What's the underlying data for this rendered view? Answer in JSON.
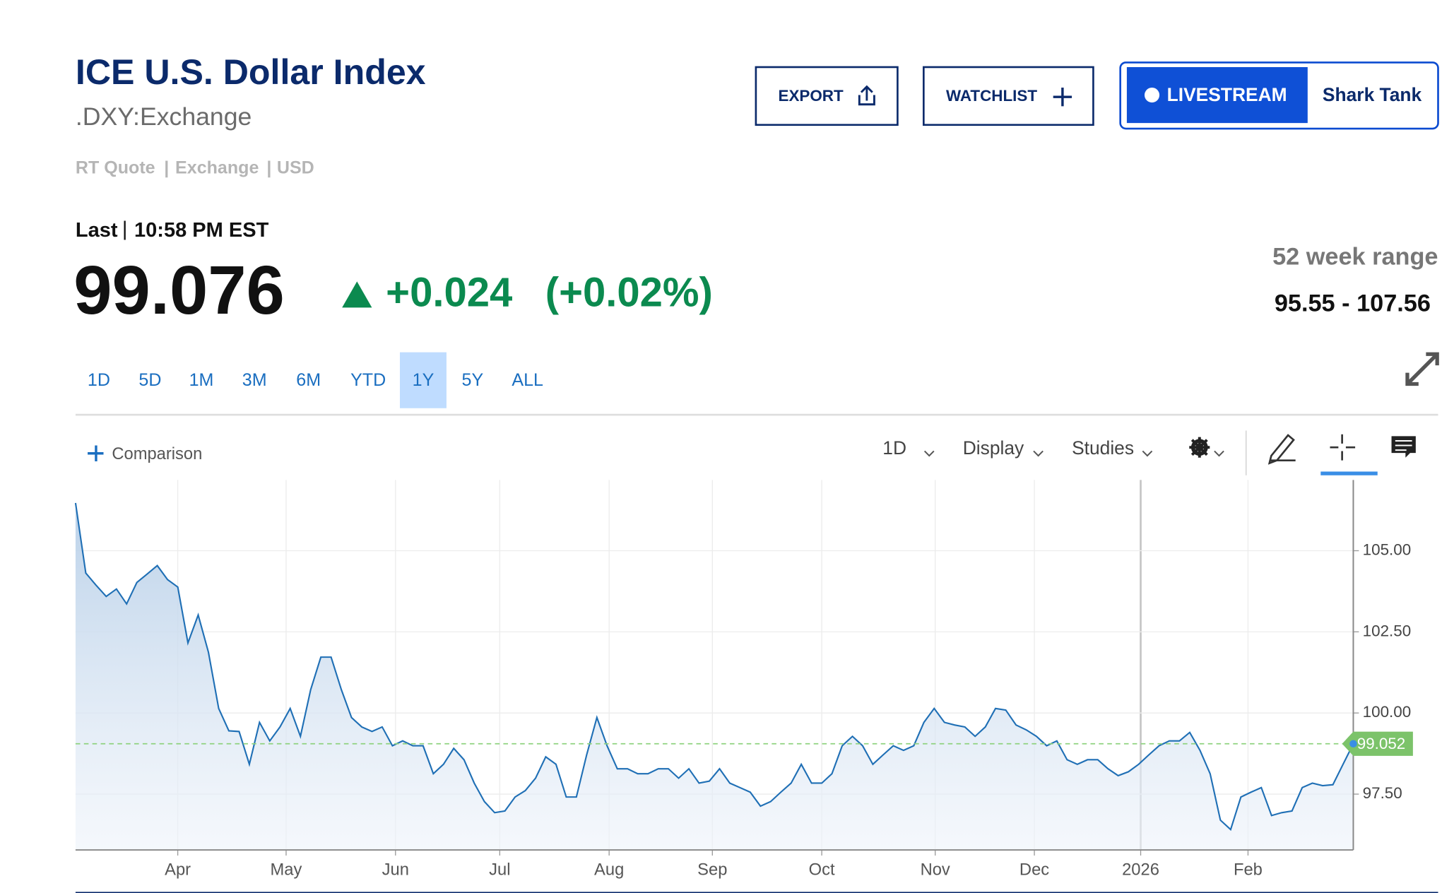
{
  "header": {
    "title": "ICE U.S. Dollar Index",
    "symbol": ".DXY:Exchange",
    "meta": [
      "RT Quote",
      "Exchange",
      "USD"
    ]
  },
  "buttons": {
    "export": "EXPORT",
    "watchlist": "WATCHLIST",
    "livestream": "LIVESTREAM",
    "shark_tank": "Shark Tank"
  },
  "quote": {
    "last_label": "Last",
    "time": "10:58 PM EST",
    "price": "99.076",
    "change": "+0.024",
    "change_pct": "(+0.02%)",
    "range_label": "52 week range",
    "range": "95.55 - 107.56"
  },
  "ranges": [
    "1D",
    "5D",
    "1M",
    "3M",
    "6M",
    "YTD",
    "1Y",
    "5Y",
    "ALL"
  ],
  "selected_range": "1Y",
  "toolbar": {
    "comparison": "Comparison",
    "interval": "1D",
    "display": "Display",
    "studies": "Studies"
  },
  "chart_data": {
    "type": "line",
    "color": "#1f6fb5",
    "values": [
      106.47,
      104.31,
      103.94,
      103.59,
      103.82,
      103.36,
      104.02,
      104.28,
      104.54,
      104.11,
      103.88,
      102.16,
      103.02,
      101.87,
      100.14,
      99.45,
      99.43,
      98.42,
      99.71,
      99.14,
      99.57,
      100.14,
      99.28,
      100.72,
      101.72,
      101.72,
      100.72,
      99.86,
      99.57,
      99.43,
      99.57,
      98.99,
      99.14,
      98.99,
      98.99,
      98.13,
      98.42,
      98.91,
      98.56,
      97.84,
      97.27,
      96.93,
      96.98,
      97.41,
      97.61,
      97.99,
      98.65,
      98.42,
      97.41,
      97.41,
      98.71,
      99.86,
      98.99,
      98.28,
      98.28,
      98.13,
      98.13,
      98.28,
      98.28,
      97.99,
      98.28,
      97.84,
      97.9,
      98.28,
      97.84,
      97.7,
      97.56,
      97.13,
      97.27,
      97.56,
      97.84,
      98.42,
      97.84,
      97.84,
      98.13,
      98.99,
      99.28,
      98.99,
      98.42,
      98.71,
      98.99,
      98.85,
      98.99,
      99.71,
      100.14,
      99.71,
      99.63,
      99.57,
      99.28,
      99.57,
      100.14,
      100.09,
      99.63,
      99.48,
      99.28,
      98.99,
      99.14,
      98.56,
      98.42,
      98.56,
      98.56,
      98.28,
      98.07,
      98.19,
      98.42,
      98.71,
      98.99,
      99.14,
      99.14,
      99.4,
      98.85,
      98.13,
      96.7,
      96.41,
      97.41,
      97.56,
      97.7,
      96.84,
      96.93,
      96.98,
      97.7,
      97.84,
      97.76,
      97.79,
      98.42,
      99.052
    ],
    "last_value": 99.052,
    "xlim": [
      0,
      125
    ],
    "xticks": [
      {
        "value": 10,
        "label": "Apr"
      },
      {
        "value": 20.6,
        "label": "May"
      },
      {
        "value": 31.3,
        "label": "Jun"
      },
      {
        "value": 41.5,
        "label": "Jul"
      },
      {
        "value": 52.2,
        "label": "Aug"
      },
      {
        "value": 62.3,
        "label": "Sep"
      },
      {
        "value": 73,
        "label": "Oct"
      },
      {
        "value": 84.1,
        "label": "Nov"
      },
      {
        "value": 93.8,
        "label": "Dec"
      },
      {
        "value": 104.2,
        "label": "2026"
      },
      {
        "value": 114.7,
        "label": "Feb"
      }
    ],
    "ylim": [
      95.78,
      107.18
    ],
    "yticks": [
      {
        "value": 97.5,
        "label": "97.50"
      },
      {
        "value": 100,
        "label": "100.00"
      },
      {
        "value": 102.5,
        "label": "102.50"
      },
      {
        "value": 105,
        "label": "105.00"
      }
    ],
    "grid": true
  }
}
